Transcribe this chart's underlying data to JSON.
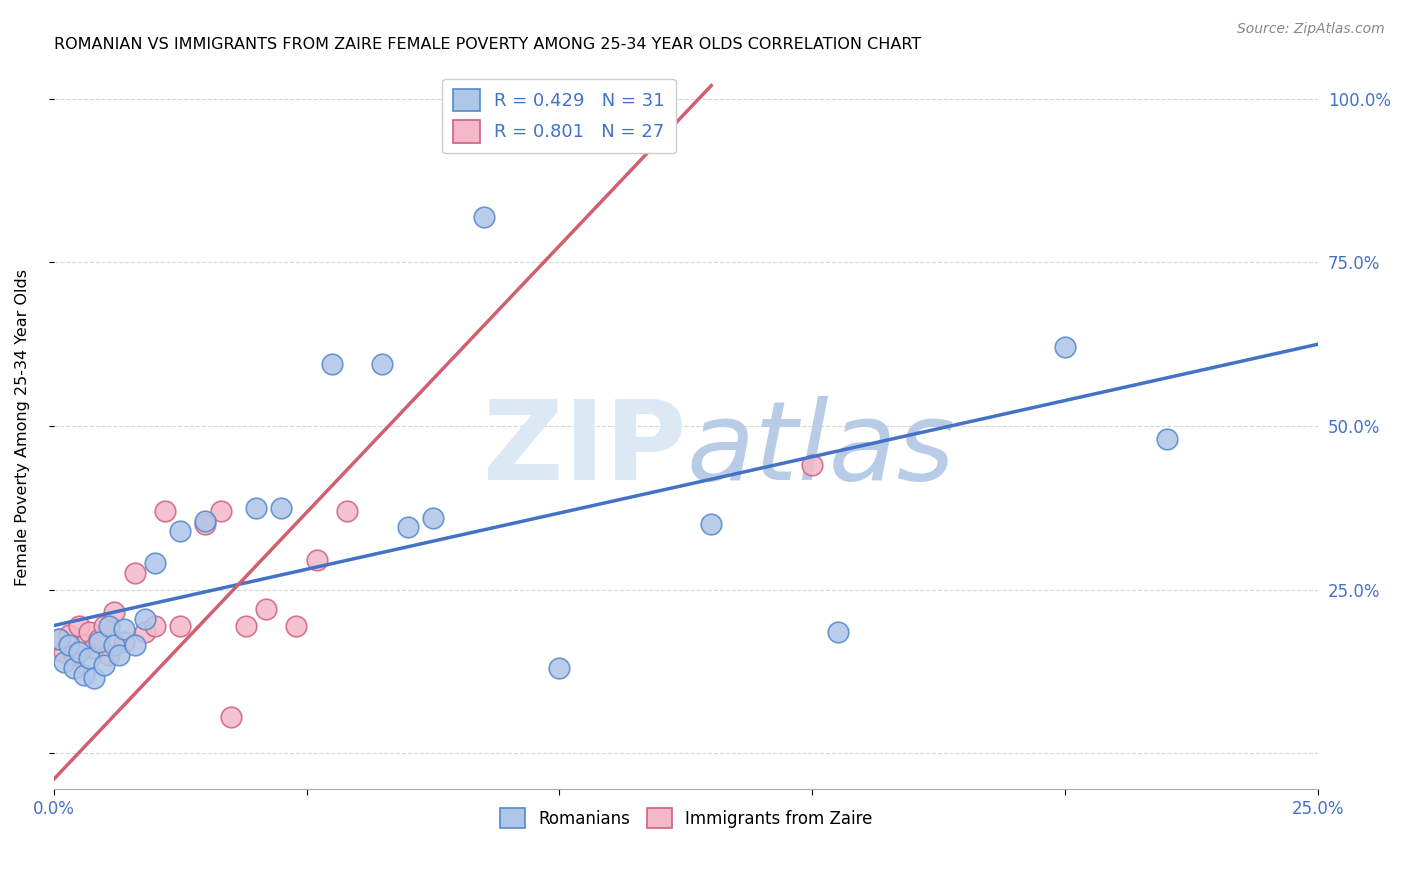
{
  "title": "ROMANIAN VS IMMIGRANTS FROM ZAIRE FEMALE POVERTY AMONG 25-34 YEAR OLDS CORRELATION CHART",
  "source": "Source: ZipAtlas.com",
  "ylabel": "Female Poverty Among 25-34 Year Olds",
  "xlim": [
    0.0,
    0.25
  ],
  "ylim": [
    -0.055,
    1.05
  ],
  "romanian_R": 0.429,
  "romanian_N": 31,
  "zaire_R": 0.801,
  "zaire_N": 27,
  "blue_scatter_color": "#aec6e8",
  "blue_scatter_edge": "#5588cc",
  "pink_scatter_color": "#f4b8c8",
  "pink_scatter_edge": "#d06080",
  "blue_line_color": "#4472c4",
  "pink_line_color": "#d06070",
  "watermark_color": "#dde8f5",
  "background_color": "#ffffff",
  "grid_color": "#cccccc",
  "romanian_x": [
    0.001,
    0.002,
    0.003,
    0.004,
    0.005,
    0.006,
    0.007,
    0.008,
    0.009,
    0.01,
    0.011,
    0.012,
    0.013,
    0.014,
    0.016,
    0.018,
    0.02,
    0.025,
    0.03,
    0.04,
    0.045,
    0.055,
    0.065,
    0.07,
    0.075,
    0.085,
    0.1,
    0.13,
    0.155,
    0.2,
    0.22
  ],
  "romanian_y": [
    0.175,
    0.14,
    0.165,
    0.13,
    0.155,
    0.12,
    0.145,
    0.115,
    0.17,
    0.135,
    0.195,
    0.165,
    0.15,
    0.19,
    0.165,
    0.205,
    0.29,
    0.34,
    0.355,
    0.375,
    0.375,
    0.595,
    0.595,
    0.345,
    0.36,
    0.82,
    0.13,
    0.35,
    0.185,
    0.62,
    0.48
  ],
  "zaire_x": [
    0.001,
    0.002,
    0.003,
    0.004,
    0.005,
    0.006,
    0.007,
    0.008,
    0.009,
    0.01,
    0.011,
    0.012,
    0.014,
    0.016,
    0.018,
    0.02,
    0.022,
    0.025,
    0.03,
    0.033,
    0.038,
    0.042,
    0.048,
    0.052,
    0.058,
    0.15,
    0.035
  ],
  "zaire_y": [
    0.175,
    0.155,
    0.18,
    0.15,
    0.195,
    0.165,
    0.185,
    0.16,
    0.175,
    0.195,
    0.15,
    0.215,
    0.17,
    0.275,
    0.185,
    0.195,
    0.37,
    0.195,
    0.35,
    0.37,
    0.195,
    0.22,
    0.195,
    0.295,
    0.37,
    0.44,
    0.055
  ],
  "blue_line_x0": 0.0,
  "blue_line_y0": 0.195,
  "blue_line_x1": 0.25,
  "blue_line_y1": 0.625,
  "pink_line_x0": 0.0,
  "pink_line_y0": -0.04,
  "pink_line_x1": 0.13,
  "pink_line_y1": 1.02
}
